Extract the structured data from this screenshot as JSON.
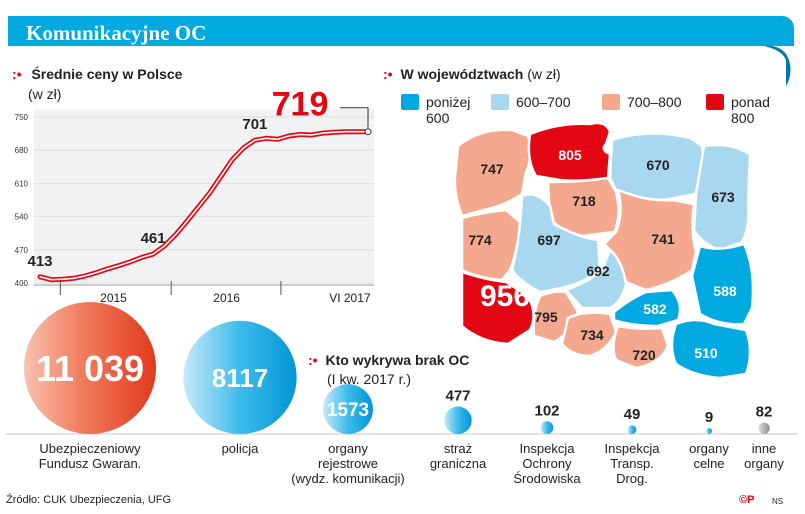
{
  "header": {
    "title": "Komunikacyjne OC"
  },
  "line_section": {
    "title": "Średnie ceny w Polsce",
    "unit": "(w zł)",
    "dots": ":•"
  },
  "map_section": {
    "title": "W województwach",
    "unit": "(w zł)",
    "dots": ":•",
    "legend": [
      {
        "line1": "poniżej",
        "line2": "600",
        "color": "#00a9e0"
      },
      {
        "line1": "600–700",
        "line2": "",
        "color": "#a8d8f0"
      },
      {
        "line1": "700–800",
        "line2": "",
        "color": "#f4a98e"
      },
      {
        "line1": "ponad",
        "line2": "800",
        "color": "#e30613"
      }
    ]
  },
  "bubble_section": {
    "title": "Kto wykrywa brak OC",
    "subtitle": "(I kw. 2017 r.)",
    "dots": ":•"
  },
  "footer": {
    "source": "Źródło: CUK Ubezpieczenia, UFG",
    "credit": "©P",
    "credit_ns": "NS"
  },
  "chart_data": [
    {
      "type": "line",
      "title": "Średnie ceny w Polsce",
      "ylabel": "(w zł)",
      "ylim": [
        400,
        750
      ],
      "yticks": [
        400,
        470,
        540,
        610,
        680,
        750
      ],
      "x_tick_labels": [
        "2015",
        "2016",
        "VI 2017"
      ],
      "x": [
        0,
        1,
        2,
        3,
        4,
        5,
        6,
        7,
        8,
        9,
        10,
        11,
        12,
        13,
        14,
        15,
        16,
        17,
        18,
        19,
        20,
        21,
        22,
        23,
        24,
        25,
        26,
        27,
        28,
        29
      ],
      "values": [
        413,
        407,
        408,
        410,
        415,
        422,
        430,
        437,
        445,
        454,
        461,
        478,
        502,
        530,
        560,
        590,
        625,
        660,
        685,
        701,
        705,
        703,
        710,
        713,
        712,
        716,
        718,
        719,
        719,
        719
      ],
      "annotations": [
        {
          "index": 0,
          "label": "413"
        },
        {
          "index": 10,
          "label": "461"
        },
        {
          "index": 19,
          "label": "701"
        },
        {
          "index": 29,
          "label": "719"
        }
      ],
      "year_dividers": [
        1.8,
        11.6,
        21.3
      ]
    },
    {
      "type": "map",
      "title": "W województwach",
      "regions": [
        {
          "name": "zachodniopomorskie",
          "value": 747,
          "category": "700–800"
        },
        {
          "name": "pomorskie",
          "value": 805,
          "category": "ponad 800"
        },
        {
          "name": "warmińsko-mazurskie",
          "value": 670,
          "category": "600–700"
        },
        {
          "name": "podlaskie",
          "value": 673,
          "category": "600–700"
        },
        {
          "name": "kujawsko-pomorskie",
          "value": 718,
          "category": "700–800"
        },
        {
          "name": "lubuskie",
          "value": 774,
          "category": "700–800"
        },
        {
          "name": "wielkopolskie",
          "value": 697,
          "category": "600–700"
        },
        {
          "name": "mazowieckie",
          "value": 741,
          "category": "700–800"
        },
        {
          "name": "łódzkie",
          "value": 692,
          "category": "600–700"
        },
        {
          "name": "dolnośląskie",
          "value": 956,
          "category": "ponad 800"
        },
        {
          "name": "lubelskie",
          "value": 588,
          "category": "poniżej 600"
        },
        {
          "name": "świętokrzyskie",
          "value": 582,
          "category": "poniżej 600"
        },
        {
          "name": "opolskie",
          "value": 795,
          "category": "700–800"
        },
        {
          "name": "śląskie",
          "value": 734,
          "category": "700–800"
        },
        {
          "name": "małopolskie",
          "value": 720,
          "category": "700–800"
        },
        {
          "name": "podkarpackie",
          "value": 510,
          "category": "poniżej 600"
        }
      ]
    },
    {
      "type": "bubble",
      "title": "Kto wykrywa brak OC",
      "subtitle": "(I kw. 2017 r.)",
      "items": [
        {
          "value": 11039,
          "value_label": "11 039",
          "label": "Ubezpieczeniowy\nFundusz Gwaran.",
          "color": "red"
        },
        {
          "value": 8117,
          "value_label": "8117",
          "label": "policja",
          "color": "blue"
        },
        {
          "value": 1573,
          "value_label": "1573",
          "label": "organy\nrejestrowe\n(wydz. komunikacji)",
          "color": "blue"
        },
        {
          "value": 477,
          "value_label": "477",
          "label": "straż\ngraniczna",
          "color": "blue"
        },
        {
          "value": 102,
          "value_label": "102",
          "label": "Inspekcja\nOchrony\nŚrodowiska",
          "color": "blue"
        },
        {
          "value": 49,
          "value_label": "49",
          "label": "Inspekcja\nTransp.\nDrog.",
          "color": "blue"
        },
        {
          "value": 9,
          "value_label": "9",
          "label": "organy\ncelne",
          "color": "blue"
        },
        {
          "value": 82,
          "value_label": "82",
          "label": "inne\norgany",
          "color": "gray"
        }
      ]
    }
  ]
}
